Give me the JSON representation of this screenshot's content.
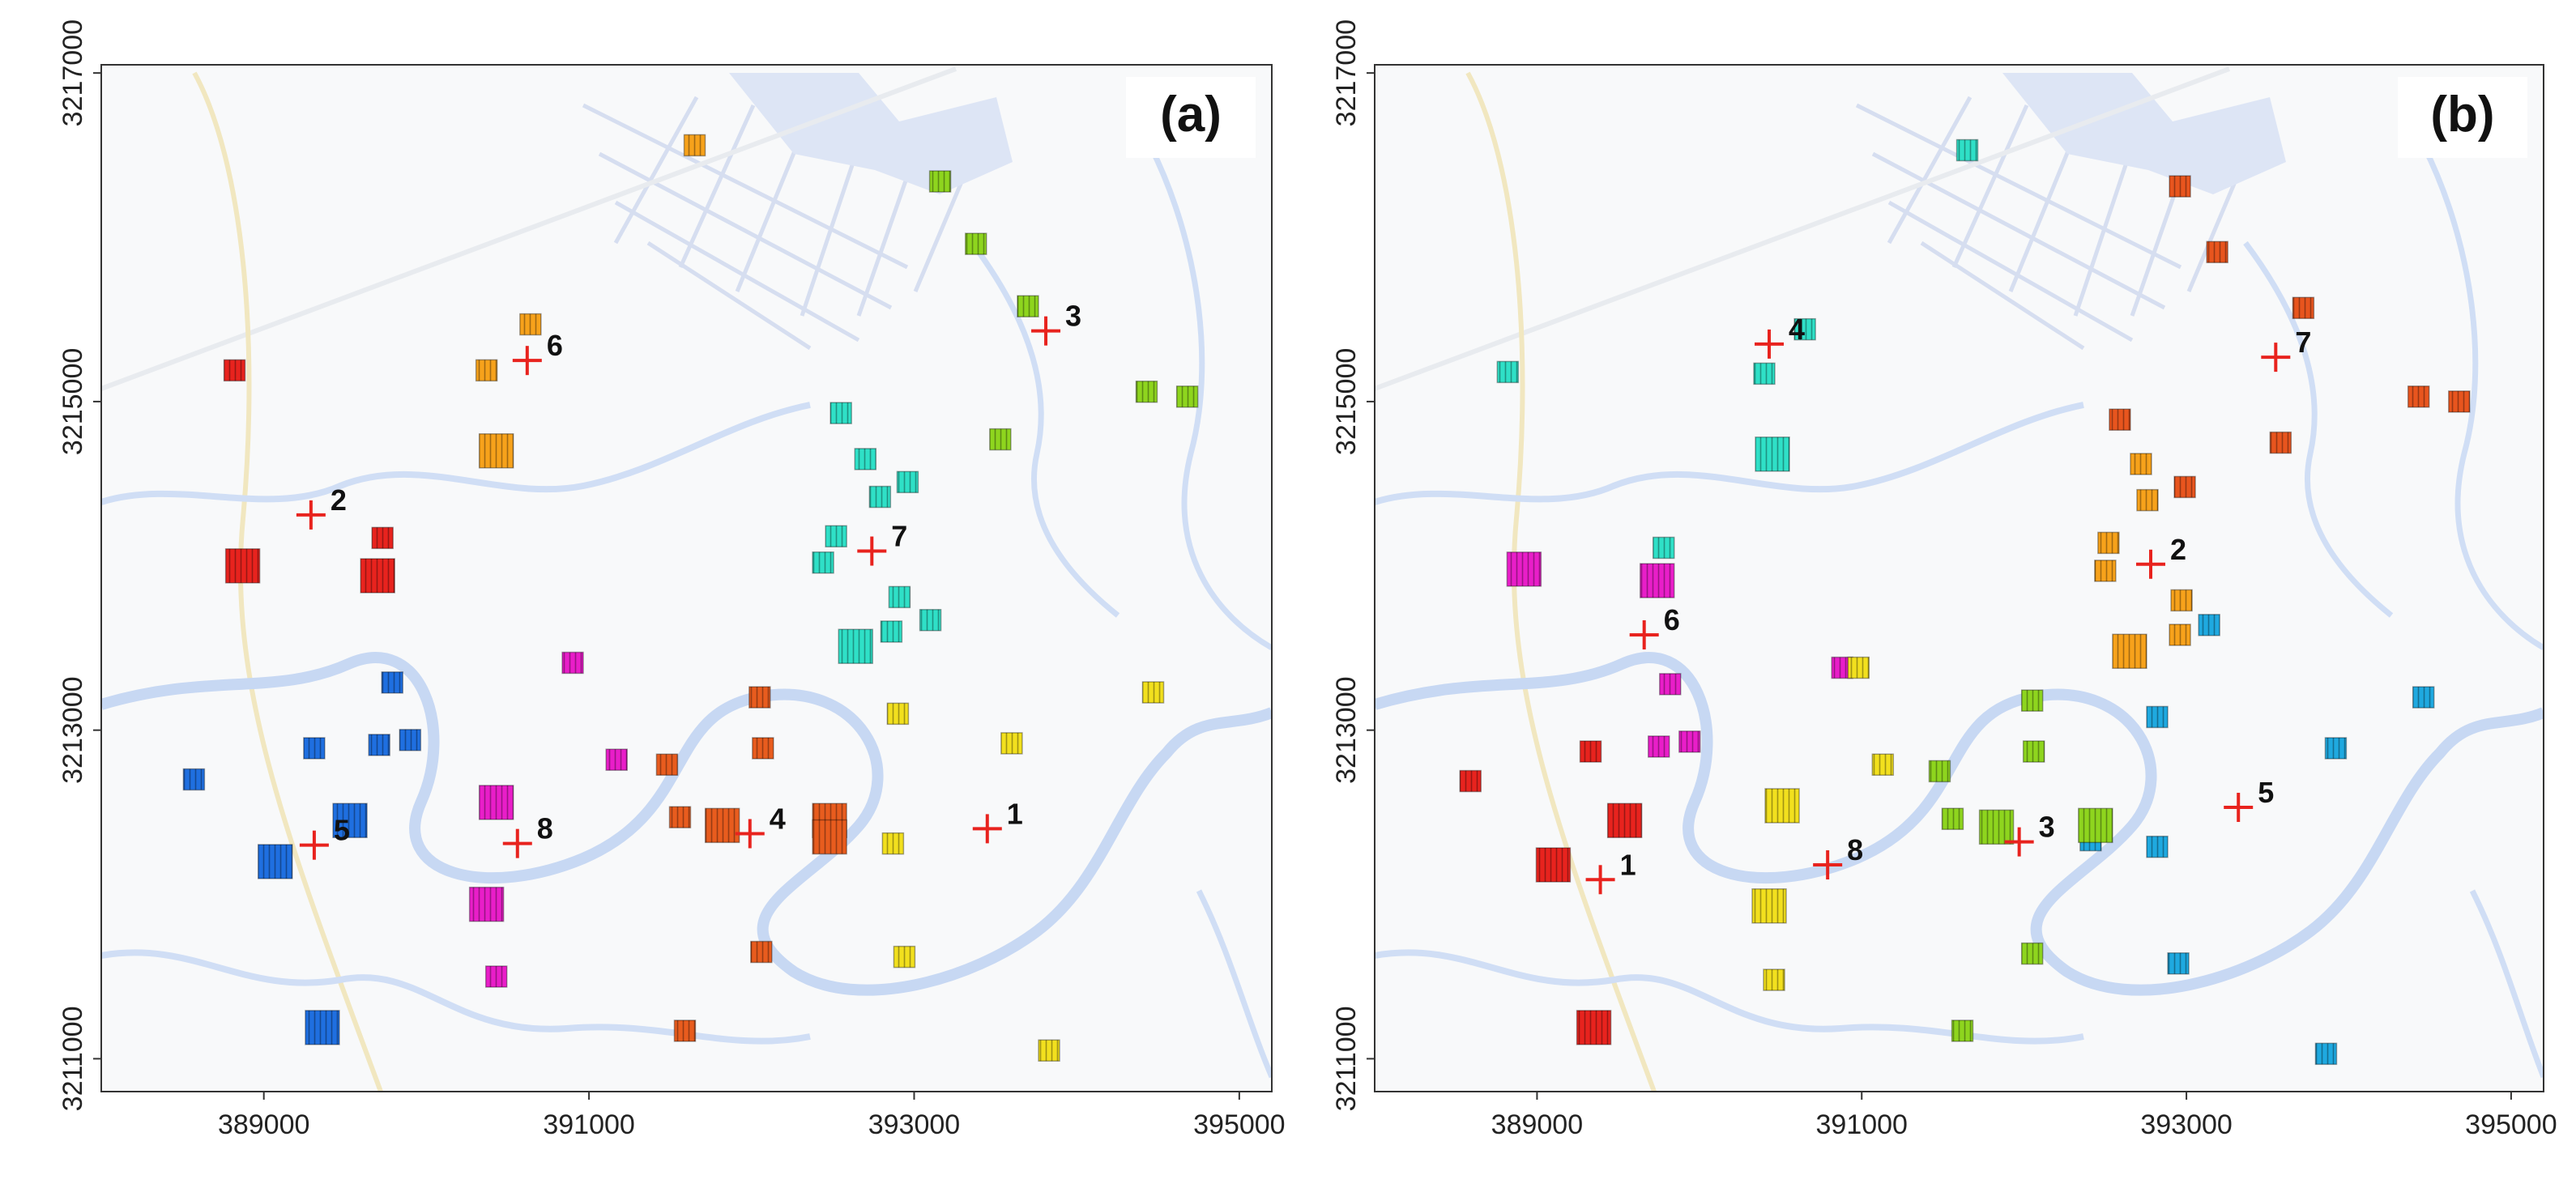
{
  "figure": {
    "panels": [
      {
        "label": "(a)",
        "x_range": [
          388000,
          395200
        ],
        "y_range": [
          3210800,
          3217050
        ],
        "x_ticks": [
          "389000",
          "391000",
          "393000",
          "395000"
        ],
        "y_ticks": [
          "3217000",
          "3215000",
          "3213000",
          "3211000"
        ],
        "clusters": [
          {
            "color": "#E8231E",
            "points": [
              [
                388820,
                3215190,
                "s"
              ],
              [
                388870,
                3214000,
                "m"
              ],
              [
                389730,
                3214170,
                "s"
              ],
              [
                389700,
                3213940,
                "m"
              ]
            ]
          },
          {
            "color": "#F7A21B",
            "points": [
              [
                391650,
                3216560,
                "s"
              ],
              [
                390640,
                3215470,
                "s"
              ],
              [
                390370,
                3215190,
                "s"
              ],
              [
                390430,
                3214700,
                "m"
              ]
            ]
          },
          {
            "color": "#8ED51E",
            "points": [
              [
                393160,
                3216340,
                "s"
              ],
              [
                393380,
                3215960,
                "s"
              ],
              [
                393700,
                3215580,
                "s"
              ],
              [
                394430,
                3215060,
                "s"
              ],
              [
                394680,
                3215030,
                "s"
              ],
              [
                393530,
                3214770,
                "s"
              ]
            ]
          },
          {
            "color": "#2FE0C7",
            "points": [
              [
                392550,
                3214930,
                "s"
              ],
              [
                392700,
                3214650,
                "s"
              ],
              [
                392790,
                3214420,
                "s"
              ],
              [
                392960,
                3214510,
                "s"
              ],
              [
                392520,
                3214180,
                "s"
              ],
              [
                392440,
                3214020,
                "s"
              ],
              [
                392910,
                3213810,
                "s"
              ],
              [
                393100,
                3213670,
                "s"
              ],
              [
                392860,
                3213600,
                "s"
              ],
              [
                392640,
                3213510,
                "m"
              ]
            ]
          },
          {
            "color": "#E91EC9",
            "points": [
              [
                390900,
                3213410,
                "s"
              ],
              [
                391170,
                3212820,
                "s"
              ],
              [
                390430,
                3212560,
                "m"
              ],
              [
                390370,
                3211940,
                "m"
              ],
              [
                390430,
                3211500,
                "s"
              ]
            ]
          },
          {
            "color": "#1F6FE0",
            "points": [
              [
                389790,
                3213290,
                "s"
              ],
              [
                389310,
                3212890,
                "s"
              ],
              [
                389710,
                3212910,
                "s"
              ],
              [
                389900,
                3212940,
                "s"
              ],
              [
                388570,
                3212700,
                "s"
              ],
              [
                389530,
                3212450,
                "m"
              ],
              [
                389070,
                3212200,
                "m"
              ],
              [
                389360,
                3211190,
                "m"
              ]
            ]
          },
          {
            "color": "#E85C1E",
            "points": [
              [
                392050,
                3213200,
                "s"
              ],
              [
                392070,
                3212890,
                "s"
              ],
              [
                391480,
                3212790,
                "s"
              ],
              [
                391560,
                3212470,
                "s"
              ],
              [
                391820,
                3212420,
                "m"
              ],
              [
                392480,
                3212450,
                "m"
              ],
              [
                392480,
                3212350,
                "m"
              ],
              [
                392060,
                3211650,
                "s"
              ],
              [
                391590,
                3211170,
                "s"
              ]
            ]
          },
          {
            "color": "#F2E01E",
            "points": [
              [
                392900,
                3213100,
                "s"
              ],
              [
                393600,
                3212920,
                "s"
              ],
              [
                394470,
                3213230,
                "s"
              ],
              [
                392870,
                3212310,
                "s"
              ],
              [
                392940,
                3211620,
                "s"
              ],
              [
                393830,
                3211050,
                "s"
              ]
            ]
          }
        ],
        "markers": [
          {
            "label": "1",
            "x": 393450,
            "y": 3212400
          },
          {
            "label": "2",
            "x": 389290,
            "y": 3214310
          },
          {
            "label": "3",
            "x": 393810,
            "y": 3215430
          },
          {
            "label": "4",
            "x": 391990,
            "y": 3212370
          },
          {
            "label": "5",
            "x": 389310,
            "y": 3212300
          },
          {
            "label": "6",
            "x": 390620,
            "y": 3215250
          },
          {
            "label": "7",
            "x": 392740,
            "y": 3214090
          },
          {
            "label": "8",
            "x": 390560,
            "y": 3212310
          }
        ]
      },
      {
        "label": "(b)",
        "x_range": [
          388000,
          395200
        ],
        "y_range": [
          3210800,
          3217050
        ],
        "x_ticks": [
          "389000",
          "391000",
          "393000",
          "395000"
        ],
        "y_ticks": [
          "3217000",
          "3215000",
          "3213000",
          "3211000"
        ],
        "clusters": [
          {
            "color": "#2FE0C7",
            "points": [
              [
                391650,
                3216530,
                "s"
              ],
              [
                390650,
                3215440,
                "s"
              ],
              [
                390400,
                3215170,
                "s"
              ],
              [
                388820,
                3215180,
                "s"
              ],
              [
                390450,
                3214680,
                "m"
              ],
              [
                389780,
                3214110,
                "s"
              ]
            ]
          },
          {
            "color": "#E8551E",
            "points": [
              [
                392960,
                3216310,
                "s"
              ],
              [
                393190,
                3215910,
                "s"
              ],
              [
                393720,
                3215570,
                "s"
              ],
              [
                394430,
                3215030,
                "s"
              ],
              [
                394680,
                3215000,
                "s"
              ],
              [
                392590,
                3214890,
                "s"
              ],
              [
                393580,
                3214750,
                "s"
              ],
              [
                392990,
                3214480,
                "s"
              ]
            ]
          },
          {
            "color": "#F7A21B",
            "points": [
              [
                392720,
                3214620,
                "s"
              ],
              [
                392760,
                3214400,
                "s"
              ],
              [
                392520,
                3214140,
                "s"
              ],
              [
                392500,
                3213970,
                "s"
              ],
              [
                392970,
                3213790,
                "s"
              ],
              [
                392960,
                3213580,
                "s"
              ],
              [
                392650,
                3213480,
                "m"
              ]
            ]
          },
          {
            "color": "#E91EC9",
            "points": [
              [
                388920,
                3213980,
                "m"
              ],
              [
                389740,
                3213910,
                "m"
              ],
              [
                389820,
                3213280,
                "s"
              ],
              [
                390880,
                3213380,
                "s"
              ],
              [
                389750,
                3212900,
                "s"
              ],
              [
                389940,
                3212930,
                "s"
              ]
            ]
          },
          {
            "color": "#1FA9E0",
            "points": [
              [
                393140,
                3213640,
                "s"
              ],
              [
                393920,
                3212890,
                "s"
              ],
              [
                394460,
                3213200,
                "s"
              ],
              [
                392820,
                3213080,
                "s"
              ],
              [
                392410,
                3212330,
                "s"
              ],
              [
                392820,
                3212290,
                "s"
              ],
              [
                392950,
                3211580,
                "s"
              ],
              [
                393860,
                3211030,
                "s"
              ]
            ]
          },
          {
            "color": "#E8231E",
            "points": [
              [
                388590,
                3212690,
                "s"
              ],
              [
                389330,
                3212870,
                "s"
              ],
              [
                389540,
                3212450,
                "m"
              ],
              [
                389100,
                3212180,
                "m"
              ],
              [
                389350,
                3211190,
                "m"
              ]
            ]
          },
          {
            "color": "#F2E01E",
            "points": [
              [
                390510,
                3212540,
                "m"
              ],
              [
                390980,
                3213380,
                "s"
              ],
              [
                391130,
                3212790,
                "s"
              ],
              [
                390430,
                3211930,
                "m"
              ],
              [
                390460,
                3211480,
                "s"
              ]
            ]
          },
          {
            "color": "#8ED51E",
            "points": [
              [
                392050,
                3213180,
                "s"
              ],
              [
                392060,
                3212870,
                "s"
              ],
              [
                391480,
                3212750,
                "s"
              ],
              [
                391560,
                3212460,
                "s"
              ],
              [
                391830,
                3212410,
                "m"
              ],
              [
                392440,
                3212420,
                "m"
              ],
              [
                392050,
                3211640,
                "s"
              ],
              [
                391620,
                3211170,
                "s"
              ]
            ]
          }
        ],
        "markers": [
          {
            "label": "1",
            "x": 389390,
            "y": 3212090
          },
          {
            "label": "2",
            "x": 392780,
            "y": 3214010
          },
          {
            "label": "3",
            "x": 391970,
            "y": 3212320
          },
          {
            "label": "4",
            "x": 390430,
            "y": 3215350
          },
          {
            "label": "5",
            "x": 393320,
            "y": 3212530
          },
          {
            "label": "6",
            "x": 389660,
            "y": 3213580
          },
          {
            "label": "7",
            "x": 393550,
            "y": 3215270
          },
          {
            "label": "8",
            "x": 390790,
            "y": 3212180
          }
        ]
      }
    ]
  }
}
